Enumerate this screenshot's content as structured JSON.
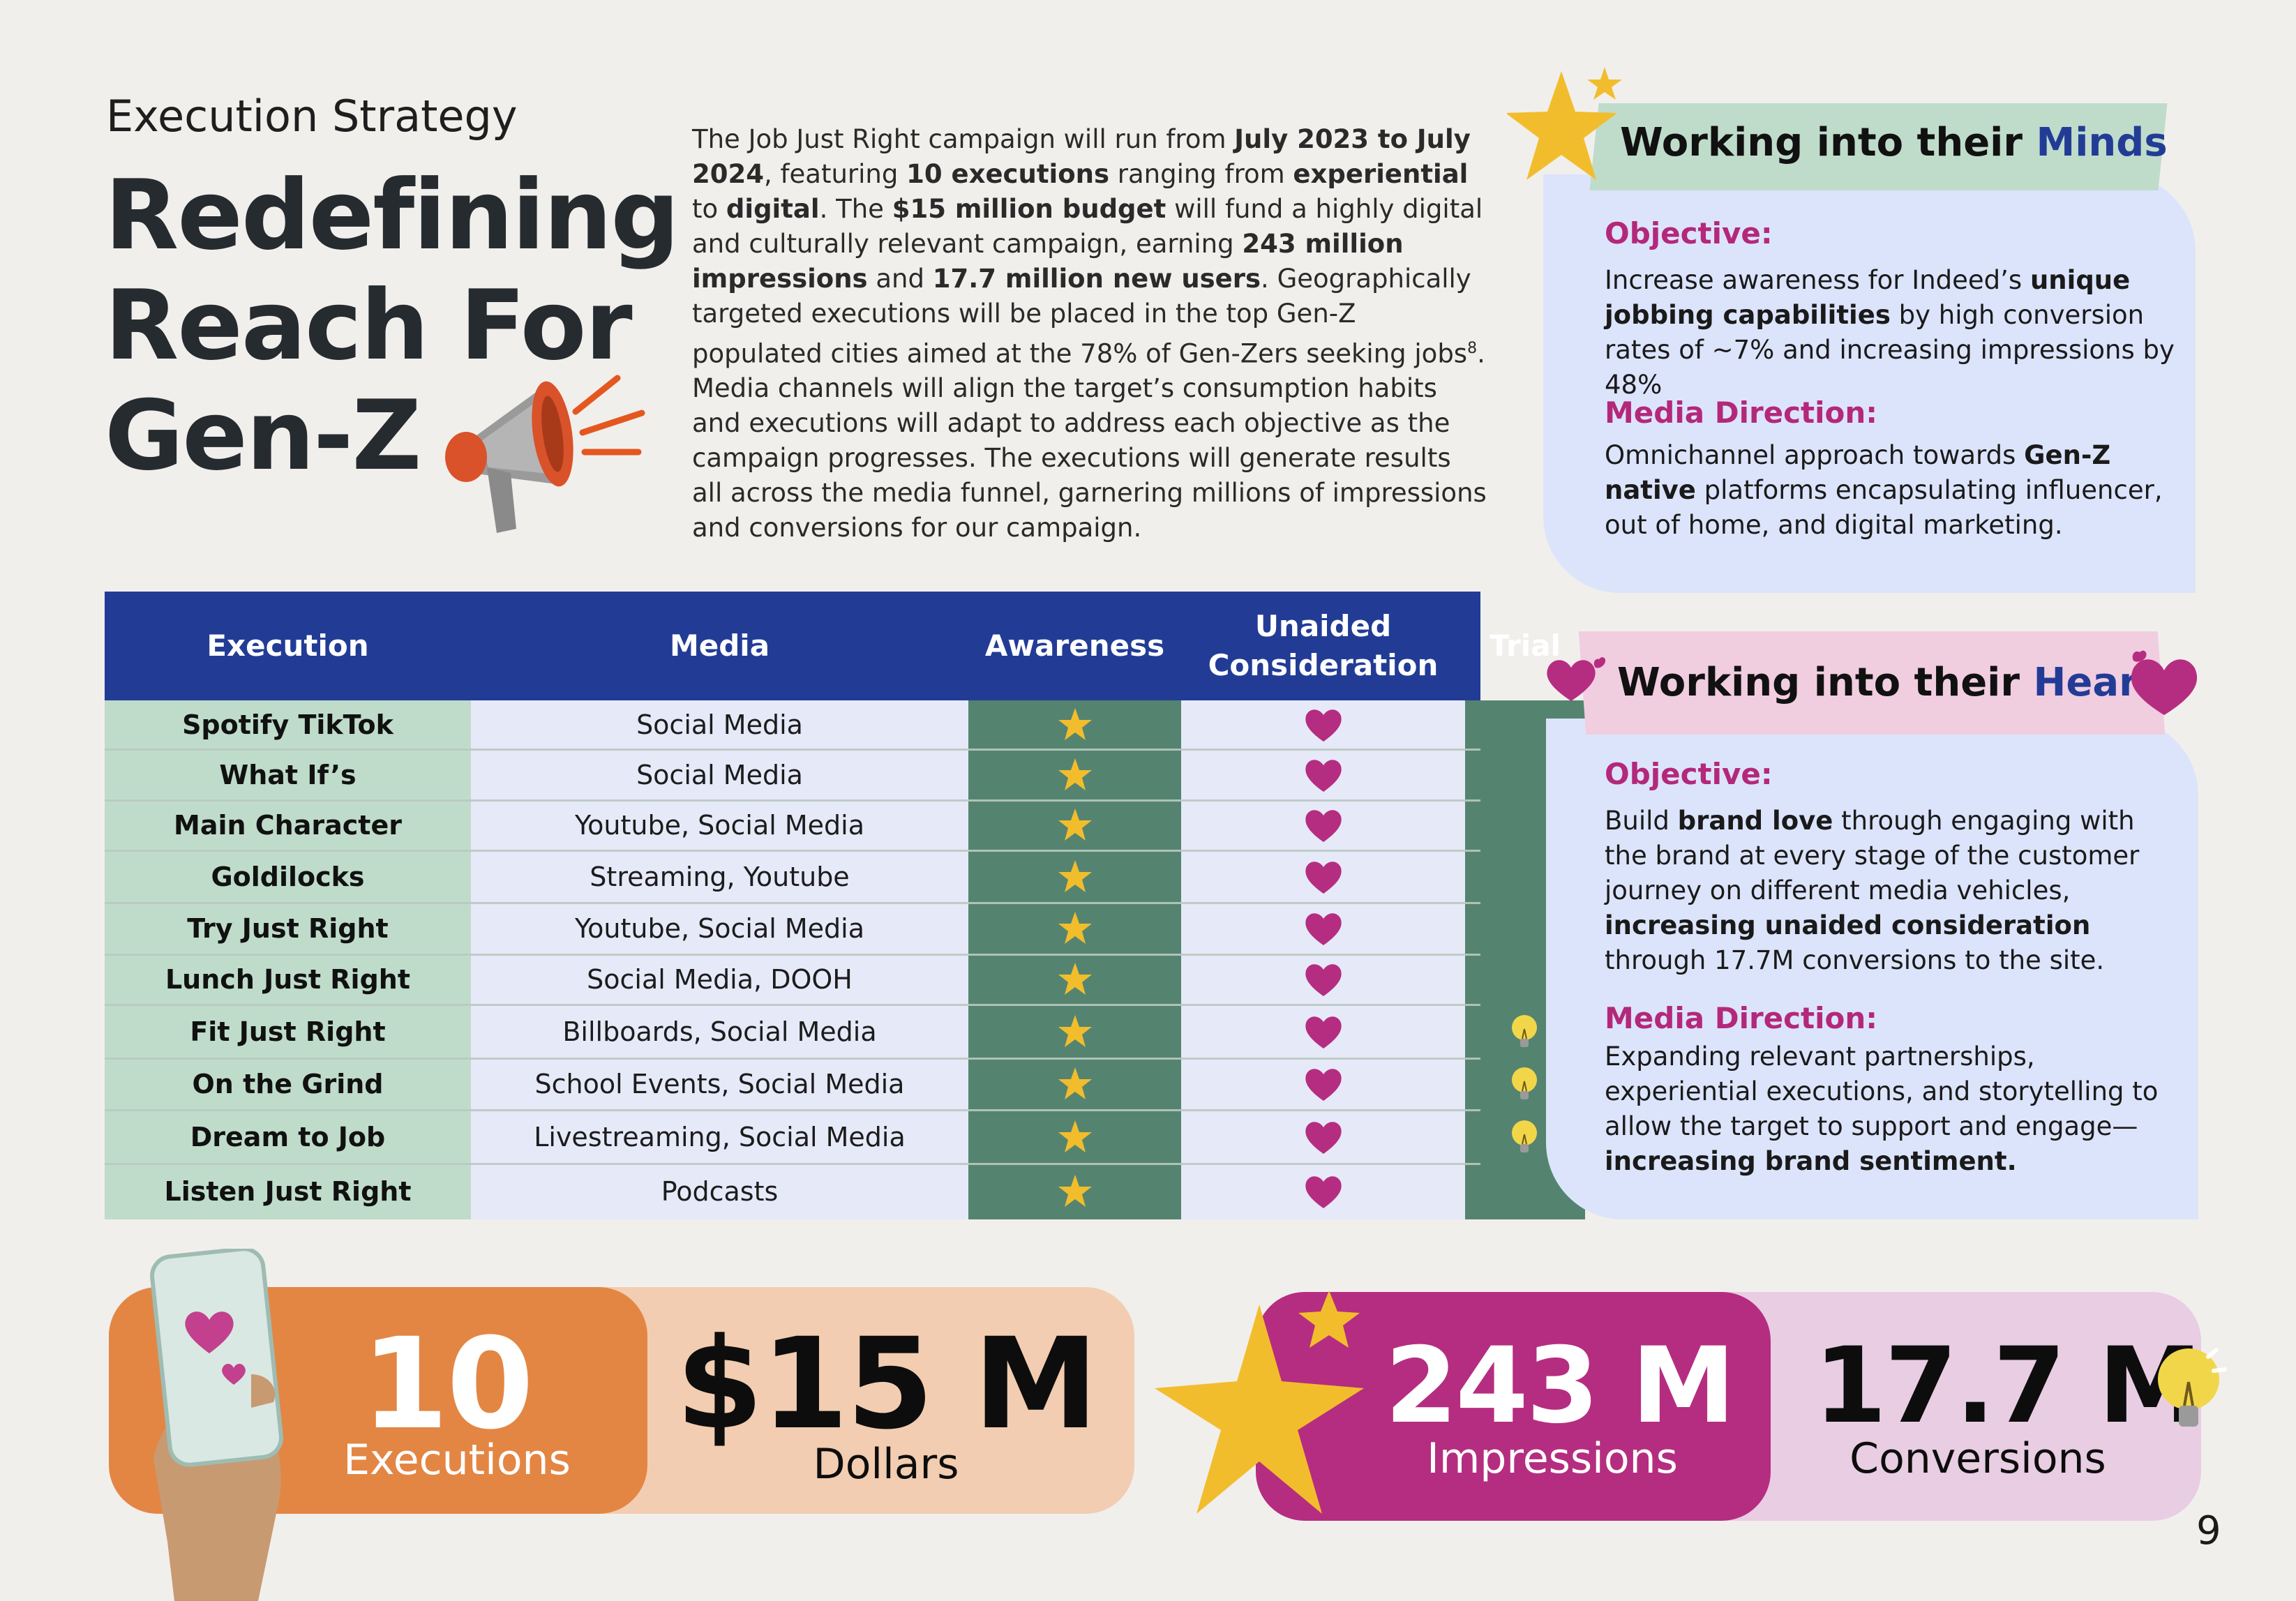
{
  "header": {
    "kicker": "Execution Strategy",
    "headline": [
      "Redefining",
      "Reach For",
      "Gen-Z"
    ]
  },
  "intro": {
    "segments": [
      {
        "t": "The Job Just Right campaign will run from ",
        "b": false
      },
      {
        "t": "July 2023 to July 2024",
        "b": true
      },
      {
        "t": ", featuring ",
        "b": false
      },
      {
        "t": "10 executions",
        "b": true
      },
      {
        "t": " ranging from ",
        "b": false
      },
      {
        "t": "experiential",
        "b": true
      },
      {
        "t": " to ",
        "b": false
      },
      {
        "t": "digital",
        "b": true
      },
      {
        "t": ". The ",
        "b": false
      },
      {
        "t": "$15 million budget",
        "b": true
      },
      {
        "t": " will fund a highly digital and culturally relevant campaign, earning ",
        "b": false
      },
      {
        "t": "243 million impressions",
        "b": true
      },
      {
        "t": " and ",
        "b": false
      },
      {
        "t": "17.7 million new users",
        "b": true
      },
      {
        "t": ". Geographically targeted executions will be placed in the top Gen-Z populated cities aimed at the 78% of Gen-Zers seeking jobs",
        "b": false
      },
      {
        "t": "8",
        "b": false,
        "sup": true
      },
      {
        "t": ". Media channels will align the target’s consumption habits and executions will adapt to address each objective as the campaign progresses. The executions will generate results all across the media funnel, garnering millions of impressions and conversions for our campaign.",
        "b": false
      }
    ]
  },
  "table": {
    "headers": {
      "execution": "Execution",
      "media": "Media",
      "awareness": "Awareness",
      "unaided": "Unaided Consideration",
      "trial": "Trial"
    },
    "rows": [
      {
        "execution": "Spotify TikTok",
        "media": "Social Media",
        "awareness": true,
        "unaided": true,
        "trial": false
      },
      {
        "execution": "What If’s",
        "media": "Social Media",
        "awareness": true,
        "unaided": true,
        "trial": false
      },
      {
        "execution": "Main Character",
        "media": "Youtube, Social Media",
        "awareness": true,
        "unaided": true,
        "trial": false
      },
      {
        "execution": "Goldilocks",
        "media": "Streaming, Youtube",
        "awareness": true,
        "unaided": true,
        "trial": false
      },
      {
        "execution": "Try Just Right",
        "media": "Youtube, Social Media",
        "awareness": true,
        "unaided": true,
        "trial": false
      },
      {
        "execution": "Lunch Just Right",
        "media": "Social Media, DOOH",
        "awareness": true,
        "unaided": true,
        "trial": false
      },
      {
        "execution": "Fit Just Right",
        "media": "Billboards, Social Media",
        "awareness": true,
        "unaided": true,
        "trial": true
      },
      {
        "execution": "On the Grind",
        "media": "School Events, Social Media",
        "awareness": true,
        "unaided": true,
        "trial": true
      },
      {
        "execution": "Dream to Job",
        "media": "Livestreaming, Social Media",
        "awareness": true,
        "unaided": true,
        "trial": true
      },
      {
        "execution": "Listen Just Right",
        "media": "Podcasts",
        "awareness": true,
        "unaided": true,
        "trial": false
      }
    ]
  },
  "minds": {
    "title_prefix": "Working into their ",
    "title_accent": "Minds",
    "objective_label": "Objective:",
    "objective": [
      {
        "t": "Increase awareness for Indeed’s ",
        "b": false
      },
      {
        "t": "unique jobbing capabilities",
        "b": true
      },
      {
        "t": " by high conversion rates of ~7% and increasing impressions by 48%",
        "b": false
      }
    ],
    "media_label": "Media Direction:",
    "media": [
      {
        "t": "Omnichannel approach towards ",
        "b": false
      },
      {
        "t": "Gen-Z native",
        "b": true
      },
      {
        "t": " platforms encapsulating influencer, out of home, and digital marketing.",
        "b": false
      }
    ]
  },
  "hearts": {
    "title_prefix": "Working into their ",
    "title_accent": "Hearts",
    "objective_label": "Objective:",
    "objective": [
      {
        "t": "Build ",
        "b": false
      },
      {
        "t": "brand love",
        "b": true
      },
      {
        "t": " through engaging with the brand at every stage of the customer journey on different media vehicles, ",
        "b": false
      },
      {
        "t": "increasing unaided consideration",
        "b": true
      },
      {
        "t": " through 17.7M conversions to the site.",
        "b": false
      }
    ],
    "media_label": "Media Direction:",
    "media": [
      {
        "t": "Expanding relevant partnerships, experiential executions, and storytelling to allow the target to support and engage—",
        "b": false
      },
      {
        "t": "increasing brand sentiment.",
        "b": true
      }
    ]
  },
  "stats": {
    "executions": {
      "value": "10",
      "label": "Executions"
    },
    "dollars": {
      "value": "$15 M",
      "label": "Dollars"
    },
    "impressions": {
      "value": "243 M",
      "label": "Impressions"
    },
    "conversions": {
      "value": "17.7 M",
      "label": "Conversions"
    }
  },
  "page_number": "9",
  "colors": {
    "navy": "#223c96",
    "magenta": "#b52d80",
    "orange": "#e38644",
    "green_dark": "#548470",
    "green_light": "#bfdccb",
    "star": "#f2bd2c"
  },
  "icons": [
    "megaphone-icon",
    "star-icon",
    "heart-icon",
    "lightbulb-icon",
    "phone-hand-icon"
  ]
}
